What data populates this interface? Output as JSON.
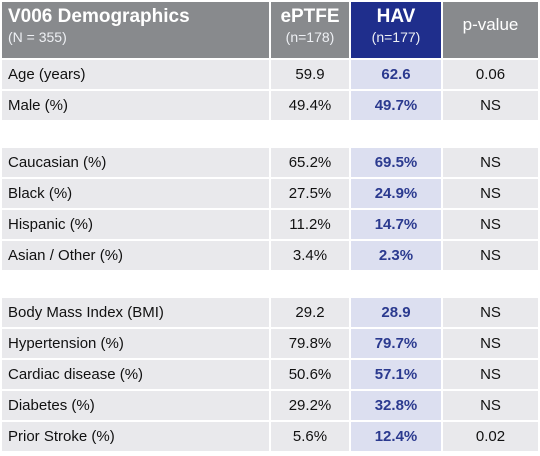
{
  "header": {
    "title": "V006 Demographics",
    "subtitle": "(N = 355)",
    "col1": {
      "label": "ePTFE",
      "n": "(n=178)"
    },
    "col2": {
      "label": "HAV",
      "n": "(n=177)"
    },
    "col3": {
      "label": "p-value"
    }
  },
  "colors": {
    "header_gray": "#888a8d",
    "header_blue": "#1f2e8c",
    "row_bg": "#e9e9ec",
    "hav_bg": "#dcdff0",
    "hav_text": "#2b3a8f"
  },
  "rows": [
    {
      "label": "Age (years)",
      "eptfe": "59.9",
      "hav": "62.6",
      "p": "0.06"
    },
    {
      "label": "Male (%)",
      "eptfe": "49.4%",
      "hav": "49.7%",
      "p": "NS"
    },
    {
      "label": "Caucasian (%)",
      "eptfe": "65.2%",
      "hav": "69.5%",
      "p": "NS"
    },
    {
      "label": "Black (%)",
      "eptfe": "27.5%",
      "hav": "24.9%",
      "p": "NS"
    },
    {
      "label": "Hispanic (%)",
      "eptfe": "11.2%",
      "hav": "14.7%",
      "p": "NS"
    },
    {
      "label": "Asian / Other (%)",
      "eptfe": "3.4%",
      "hav": "2.3%",
      "p": "NS"
    },
    {
      "label": "Body Mass Index (BMI)",
      "eptfe": "29.2",
      "hav": "28.9",
      "p": "NS"
    },
    {
      "label": "Hypertension (%)",
      "eptfe": "79.8%",
      "hav": "79.7%",
      "p": "NS"
    },
    {
      "label": "Cardiac disease (%)",
      "eptfe": "50.6%",
      "hav": "57.1%",
      "p": "NS"
    },
    {
      "label": "Diabetes (%)",
      "eptfe": "29.2%",
      "hav": "32.8%",
      "p": "NS"
    },
    {
      "label": "Prior Stroke (%)",
      "eptfe": "5.6%",
      "hav": "12.4%",
      "p": "0.02"
    }
  ]
}
